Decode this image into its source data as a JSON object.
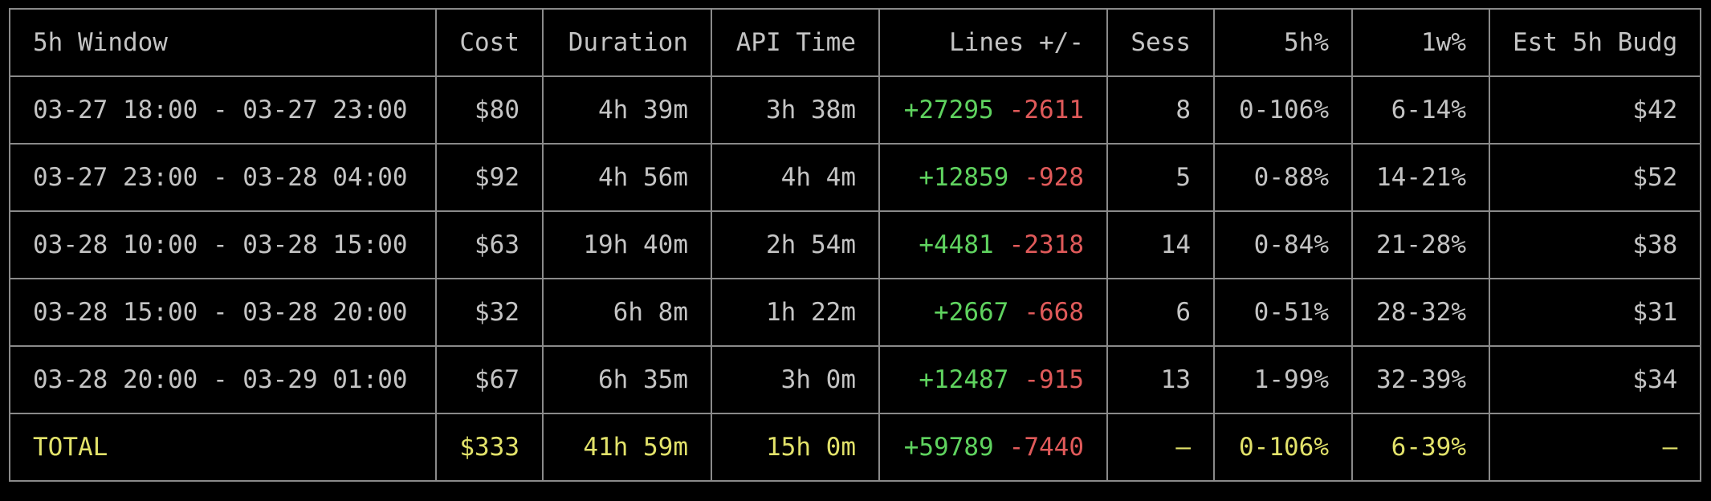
{
  "table": {
    "header": [
      "5h Window",
      "Cost",
      "Duration",
      "API Time",
      "Lines +/-",
      "Sess",
      "5h%",
      "1w%",
      "Est 5h Budg"
    ],
    "rows": [
      [
        "03-27 18:00 - 03-27 23:00",
        "$80",
        "4h 39m",
        "3h 38m",
        {
          "added": "+27295",
          "removed": "-2611"
        },
        "8",
        "0-106%",
        "6-14%",
        "$42"
      ],
      [
        "03-27 23:00 - 03-28 04:00",
        "$92",
        "4h 56m",
        "4h 4m",
        {
          "added": "+12859",
          "removed": "-928"
        },
        "5",
        "0-88%",
        "14-21%",
        "$52"
      ],
      [
        "03-28 10:00 - 03-28 15:00",
        "$63",
        "19h 40m",
        "2h 54m",
        {
          "added": "+4481",
          "removed": "-2318"
        },
        "14",
        "0-84%",
        "21-28%",
        "$38"
      ],
      [
        "03-28 15:00 - 03-28 20:00",
        "$32",
        "6h 8m",
        "1h 22m",
        {
          "added": "+2667",
          "removed": "-668"
        },
        "6",
        "0-51%",
        "28-32%",
        "$31"
      ],
      [
        "03-28 20:00 - 03-29 01:00",
        "$67",
        "6h 35m",
        "3h 0m",
        {
          "added": "+12487",
          "removed": "-915"
        },
        "13",
        "1-99%",
        "32-39%",
        "$34"
      ]
    ],
    "total": [
      "TOTAL",
      "$333",
      "41h 59m",
      "15h 0m",
      {
        "added": "+59789",
        "removed": "-7440"
      },
      "—",
      "0-106%",
      "6-39%",
      "—"
    ]
  }
}
